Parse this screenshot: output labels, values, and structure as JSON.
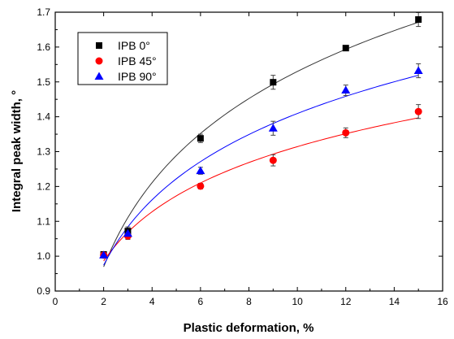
{
  "chart_data": {
    "type": "scatter",
    "xlabel": "Plastic deformation, %",
    "ylabel": "Integral peak width, °",
    "xlim": [
      0,
      16
    ],
    "ylim": [
      0.9,
      1.7
    ],
    "xticks": [
      0,
      2,
      4,
      6,
      8,
      10,
      12,
      14,
      16
    ],
    "yticks": [
      0.9,
      1.0,
      1.1,
      1.2,
      1.3,
      1.4,
      1.5,
      1.6,
      1.7
    ],
    "legend_position": "top-left",
    "x": [
      2,
      3,
      6,
      9,
      12,
      15
    ],
    "series": [
      {
        "name": "IPB 0°",
        "marker": "square",
        "color": "#000000",
        "fit_color": "#333333",
        "values": [
          1.005,
          1.072,
          1.338,
          1.499,
          1.597,
          1.679
        ],
        "errors": [
          0.008,
          0.012,
          0.012,
          0.02,
          0.006,
          0.02
        ]
      },
      {
        "name": "IPB 45°",
        "marker": "circle",
        "color": "#ff0000",
        "fit_color": "#ff0000",
        "values": [
          1.003,
          1.058,
          1.201,
          1.275,
          1.354,
          1.415
        ],
        "errors": [
          0.006,
          0.01,
          0.008,
          0.016,
          0.014,
          0.02
        ]
      },
      {
        "name": "IPB 90°",
        "marker": "triangle",
        "color": "#0000ff",
        "fit_color": "#0000ff",
        "values": [
          1.003,
          1.065,
          1.245,
          1.367,
          1.476,
          1.532
        ],
        "errors": [
          0.006,
          0.01,
          0.01,
          0.02,
          0.015,
          0.02
        ]
      }
    ]
  }
}
